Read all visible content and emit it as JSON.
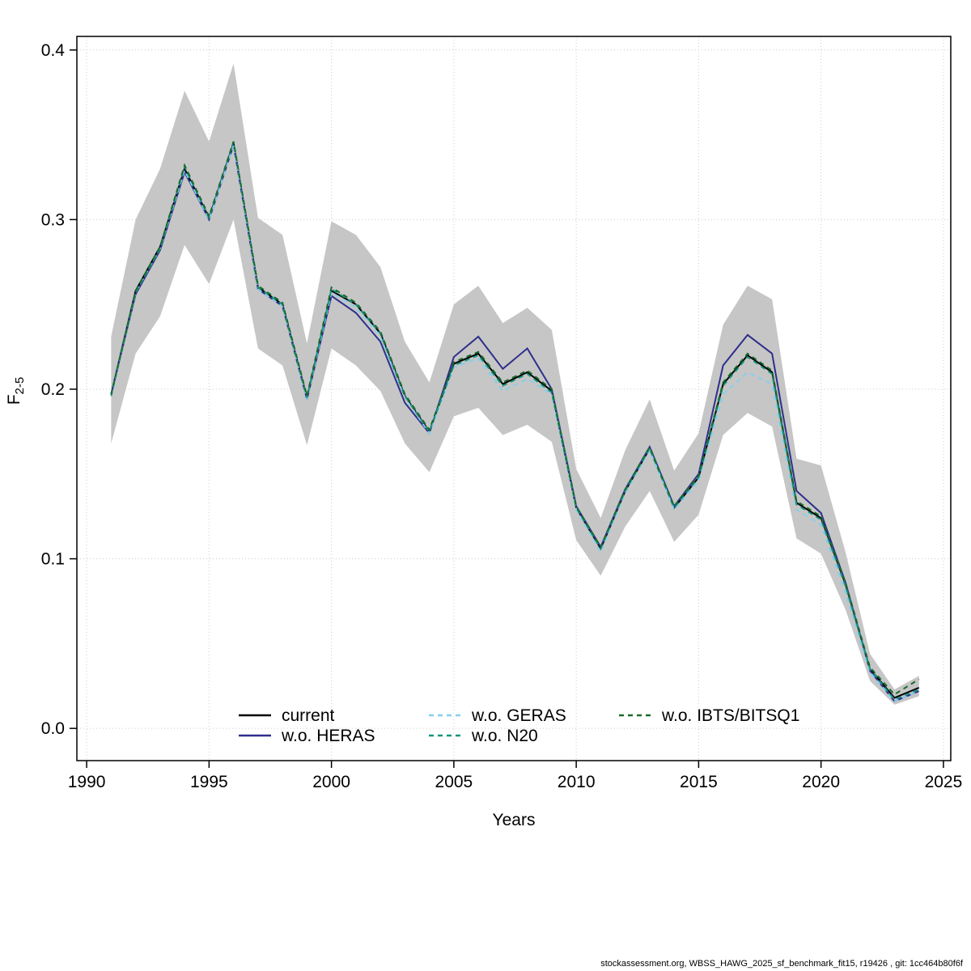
{
  "page": {
    "footer": "stockassessment.org, WBSS_HAWG_2025_sf_benchmark_fit15, r19426 , git: 1cc464b80f6f"
  },
  "chart_data": {
    "type": "line",
    "title": "",
    "xlabel": "Years",
    "ylabel": "F",
    "ylabel_sub": "2-5",
    "xlim": [
      1989.6,
      2025.3
    ],
    "ylim": [
      -0.019,
      0.408
    ],
    "x_ticks": [
      1990,
      1995,
      2000,
      2005,
      2010,
      2015,
      2020,
      2025
    ],
    "x_tick_labels": [
      "1990",
      "1995",
      "2000",
      "2005",
      "2010",
      "2015",
      "2020",
      "2025"
    ],
    "y_ticks": [
      0.0,
      0.1,
      0.2,
      0.3,
      0.4
    ],
    "y_tick_labels": [
      "0.0",
      "0.1",
      "0.2",
      "0.3",
      "0.4"
    ],
    "grid": true,
    "grid_color": "#cccccc",
    "band_color": "#c6c6c6",
    "legend_position": "bottom-inside",
    "years": [
      1991,
      1992,
      1993,
      1994,
      1995,
      1996,
      1997,
      1998,
      1999,
      2000,
      2001,
      2002,
      2003,
      2004,
      2005,
      2006,
      2007,
      2008,
      2009,
      2010,
      2011,
      2012,
      2013,
      2014,
      2015,
      2016,
      2017,
      2018,
      2019,
      2020,
      2021,
      2022,
      2023,
      2024
    ],
    "band": {
      "series": "current",
      "lower": [
        0.168,
        0.221,
        0.243,
        0.285,
        0.262,
        0.3,
        0.224,
        0.214,
        0.167,
        0.224,
        0.214,
        0.199,
        0.168,
        0.151,
        0.184,
        0.189,
        0.173,
        0.179,
        0.169,
        0.111,
        0.09,
        0.119,
        0.14,
        0.11,
        0.126,
        0.173,
        0.186,
        0.178,
        0.112,
        0.103,
        0.07,
        0.028,
        0.014,
        0.019
      ],
      "upper": [
        0.231,
        0.3,
        0.33,
        0.376,
        0.346,
        0.392,
        0.301,
        0.291,
        0.227,
        0.299,
        0.291,
        0.272,
        0.228,
        0.204,
        0.25,
        0.261,
        0.239,
        0.248,
        0.235,
        0.153,
        0.124,
        0.164,
        0.194,
        0.152,
        0.174,
        0.238,
        0.261,
        0.253,
        0.159,
        0.155,
        0.104,
        0.044,
        0.023,
        0.031
      ]
    },
    "series": [
      {
        "name": "current",
        "color": "#000000",
        "dash": "solid",
        "values": [
          0.197,
          0.258,
          0.284,
          0.33,
          0.301,
          0.345,
          0.26,
          0.25,
          0.195,
          0.258,
          0.25,
          0.233,
          0.196,
          0.175,
          0.215,
          0.221,
          0.203,
          0.21,
          0.199,
          0.13,
          0.106,
          0.14,
          0.165,
          0.13,
          0.148,
          0.203,
          0.22,
          0.21,
          0.133,
          0.124,
          0.085,
          0.035,
          0.018,
          0.024
        ]
      },
      {
        "name": "w.o. HERAS",
        "color": "#2f2f8c",
        "dash": "solid",
        "values": [
          0.197,
          0.256,
          0.282,
          0.328,
          0.3,
          0.344,
          0.259,
          0.249,
          0.194,
          0.255,
          0.245,
          0.228,
          0.192,
          0.174,
          0.219,
          0.231,
          0.212,
          0.224,
          0.2,
          0.131,
          0.107,
          0.141,
          0.166,
          0.131,
          0.15,
          0.214,
          0.232,
          0.221,
          0.14,
          0.127,
          0.086,
          0.034,
          0.016,
          0.022
        ]
      },
      {
        "name": "w.o. GERAS",
        "color": "#87ceeb",
        "dash": "dashed",
        "values": [
          0.197,
          0.257,
          0.283,
          0.329,
          0.3,
          0.344,
          0.259,
          0.249,
          0.194,
          0.257,
          0.248,
          0.231,
          0.195,
          0.174,
          0.213,
          0.218,
          0.199,
          0.206,
          0.197,
          0.129,
          0.104,
          0.139,
          0.164,
          0.129,
          0.146,
          0.197,
          0.21,
          0.203,
          0.129,
          0.12,
          0.08,
          0.033,
          0.016,
          0.022
        ]
      },
      {
        "name": "w.o. N20",
        "color": "#17937f",
        "dash": "dashed",
        "values": [
          0.196,
          0.257,
          0.283,
          0.331,
          0.301,
          0.346,
          0.26,
          0.25,
          0.195,
          0.259,
          0.25,
          0.233,
          0.196,
          0.175,
          0.214,
          0.22,
          0.202,
          0.209,
          0.198,
          0.13,
          0.106,
          0.14,
          0.165,
          0.13,
          0.148,
          0.202,
          0.219,
          0.209,
          0.132,
          0.123,
          0.084,
          0.035,
          0.017,
          0.023
        ]
      },
      {
        "name": "w.o. IBTS/BITSQ1",
        "color": "#1a6b2e",
        "dash": "dashed",
        "values": [
          0.197,
          0.258,
          0.284,
          0.332,
          0.302,
          0.346,
          0.261,
          0.251,
          0.196,
          0.26,
          0.251,
          0.234,
          0.197,
          0.176,
          0.216,
          0.222,
          0.204,
          0.211,
          0.2,
          0.131,
          0.107,
          0.141,
          0.166,
          0.131,
          0.149,
          0.204,
          0.221,
          0.211,
          0.134,
          0.125,
          0.086,
          0.036,
          0.02,
          0.029
        ]
      }
    ]
  }
}
